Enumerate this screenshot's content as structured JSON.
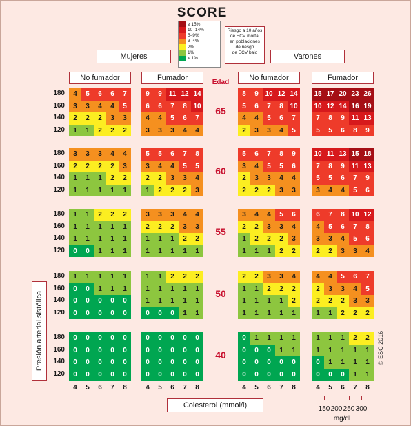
{
  "header": {
    "title": "SCORE",
    "legend": [
      {
        "label": "≥ 15%",
        "color": "#a50f15"
      },
      {
        "label": "10–14%",
        "color": "#d7191c"
      },
      {
        "label": "5–9%",
        "color": "#ee3b2a"
      },
      {
        "label": "3–4%",
        "color": "#f5901f"
      },
      {
        "label": "2%",
        "color": "#fcee21"
      },
      {
        "label": "1%",
        "color": "#8dc63f"
      },
      {
        "label": "< 1%",
        "color": "#00a651"
      }
    ],
    "legend_note": [
      "Riesgo a 10 años",
      "de ECV mortal",
      "en poblaciones",
      "de riesgo",
      "de ECV bajo"
    ]
  },
  "labels": {
    "women": "Mujeres",
    "men": "Varones",
    "non_smoker": "No fumador",
    "smoker": "Fumador",
    "age_header": "Edad",
    "y_axis": "Presión arterial sistólica",
    "x_axis": "Colesterol (mmol/l)",
    "mgdl_unit": "mg/dl",
    "copyright": "© ESC 2016"
  },
  "chart_data": {
    "type": "heatmap",
    "title": "SCORE",
    "x_label": "Colesterol (mmol/l)",
    "y_label": "Presión arterial sistólica",
    "cholesterol_mmol": [
      4,
      5,
      6,
      7,
      8
    ],
    "cholesterol_mgdl": [
      "150",
      "200",
      "250",
      "300"
    ],
    "sbp": [
      180,
      160,
      140,
      120
    ],
    "ages": [
      65,
      60,
      55,
      50,
      40
    ],
    "groups": [
      "Mujeres - No fumador",
      "Mujeres - Fumador",
      "Varones - No fumador",
      "Varones - Fumador"
    ],
    "risk_bands": [
      {
        "max": 0,
        "color": "#00a651"
      },
      {
        "max": 1,
        "color": "#8dc63f"
      },
      {
        "max": 2,
        "color": "#fcee21"
      },
      {
        "max": 4,
        "color": "#f5901f"
      },
      {
        "max": 9,
        "color": "#ee3b2a"
      },
      {
        "max": 14,
        "color": "#d7191c"
      },
      {
        "max": 99,
        "color": "#a50f15"
      }
    ],
    "values": [
      [
        [
          [
            4,
            5,
            6,
            6,
            7
          ],
          [
            3,
            3,
            4,
            4,
            5
          ],
          [
            2,
            2,
            2,
            3,
            3
          ],
          [
            1,
            1,
            2,
            2,
            2
          ]
        ],
        [
          [
            9,
            9,
            11,
            12,
            14
          ],
          [
            6,
            6,
            7,
            8,
            10
          ],
          [
            4,
            4,
            5,
            6,
            7
          ],
          [
            3,
            3,
            3,
            4,
            4
          ]
        ],
        [
          [
            8,
            9,
            10,
            12,
            14
          ],
          [
            5,
            6,
            7,
            8,
            10
          ],
          [
            4,
            4,
            5,
            6,
            7
          ],
          [
            2,
            3,
            3,
            4,
            5
          ]
        ],
        [
          [
            15,
            17,
            20,
            23,
            26
          ],
          [
            10,
            12,
            14,
            16,
            19
          ],
          [
            7,
            8,
            9,
            11,
            13
          ],
          [
            5,
            5,
            6,
            8,
            9
          ]
        ]
      ],
      [
        [
          [
            3,
            3,
            3,
            4,
            4
          ],
          [
            2,
            2,
            2,
            2,
            3
          ],
          [
            1,
            1,
            1,
            2,
            2
          ],
          [
            1,
            1,
            1,
            1,
            1
          ]
        ],
        [
          [
            5,
            5,
            6,
            7,
            8
          ],
          [
            3,
            4,
            4,
            5,
            5
          ],
          [
            2,
            2,
            3,
            3,
            4
          ],
          [
            1,
            2,
            2,
            2,
            3
          ]
        ],
        [
          [
            5,
            6,
            7,
            8,
            9
          ],
          [
            3,
            4,
            5,
            5,
            6
          ],
          [
            2,
            3,
            3,
            4,
            4
          ],
          [
            2,
            2,
            2,
            3,
            3
          ]
        ],
        [
          [
            10,
            11,
            13,
            15,
            18
          ],
          [
            7,
            8,
            9,
            11,
            13
          ],
          [
            5,
            5,
            6,
            7,
            9
          ],
          [
            3,
            4,
            4,
            5,
            6
          ]
        ]
      ],
      [
        [
          [
            1,
            1,
            2,
            2,
            2
          ],
          [
            1,
            1,
            1,
            1,
            1
          ],
          [
            1,
            1,
            1,
            1,
            1
          ],
          [
            0,
            0,
            1,
            1,
            1
          ]
        ],
        [
          [
            3,
            3,
            3,
            4,
            4
          ],
          [
            2,
            2,
            2,
            3,
            3
          ],
          [
            1,
            1,
            1,
            2,
            2
          ],
          [
            1,
            1,
            1,
            1,
            1
          ]
        ],
        [
          [
            3,
            4,
            4,
            5,
            6
          ],
          [
            2,
            2,
            3,
            3,
            4
          ],
          [
            1,
            2,
            2,
            2,
            3
          ],
          [
            1,
            1,
            1,
            2,
            2
          ]
        ],
        [
          [
            6,
            7,
            8,
            10,
            12
          ],
          [
            4,
            5,
            6,
            7,
            8
          ],
          [
            3,
            3,
            4,
            5,
            6
          ],
          [
            2,
            2,
            3,
            3,
            4
          ]
        ]
      ],
      [
        [
          [
            1,
            1,
            1,
            1,
            1
          ],
          [
            0,
            0,
            1,
            1,
            1
          ],
          [
            0,
            0,
            0,
            0,
            0
          ],
          [
            0,
            0,
            0,
            0,
            0
          ]
        ],
        [
          [
            1,
            1,
            2,
            2,
            2
          ],
          [
            1,
            1,
            1,
            1,
            1
          ],
          [
            1,
            1,
            1,
            1,
            1
          ],
          [
            0,
            0,
            0,
            1,
            1
          ]
        ],
        [
          [
            2,
            2,
            3,
            3,
            4
          ],
          [
            1,
            1,
            2,
            2,
            2
          ],
          [
            1,
            1,
            1,
            1,
            2
          ],
          [
            1,
            1,
            1,
            1,
            1
          ]
        ],
        [
          [
            4,
            4,
            5,
            6,
            7
          ],
          [
            2,
            3,
            3,
            4,
            5
          ],
          [
            2,
            2,
            2,
            3,
            3
          ],
          [
            1,
            1,
            2,
            2,
            2
          ]
        ]
      ],
      [
        [
          [
            0,
            0,
            0,
            0,
            0
          ],
          [
            0,
            0,
            0,
            0,
            0
          ],
          [
            0,
            0,
            0,
            0,
            0
          ],
          [
            0,
            0,
            0,
            0,
            0
          ]
        ],
        [
          [
            0,
            0,
            0,
            0,
            0
          ],
          [
            0,
            0,
            0,
            0,
            0
          ],
          [
            0,
            0,
            0,
            0,
            0
          ],
          [
            0,
            0,
            0,
            0,
            0
          ]
        ],
        [
          [
            0,
            1,
            1,
            1,
            1
          ],
          [
            0,
            0,
            0,
            1,
            1
          ],
          [
            0,
            0,
            0,
            0,
            0
          ],
          [
            0,
            0,
            0,
            0,
            0
          ]
        ],
        [
          [
            1,
            1,
            1,
            2,
            2
          ],
          [
            1,
            1,
            1,
            1,
            1
          ],
          [
            0,
            1,
            1,
            1,
            1
          ],
          [
            0,
            0,
            0,
            1,
            1
          ]
        ]
      ]
    ]
  }
}
